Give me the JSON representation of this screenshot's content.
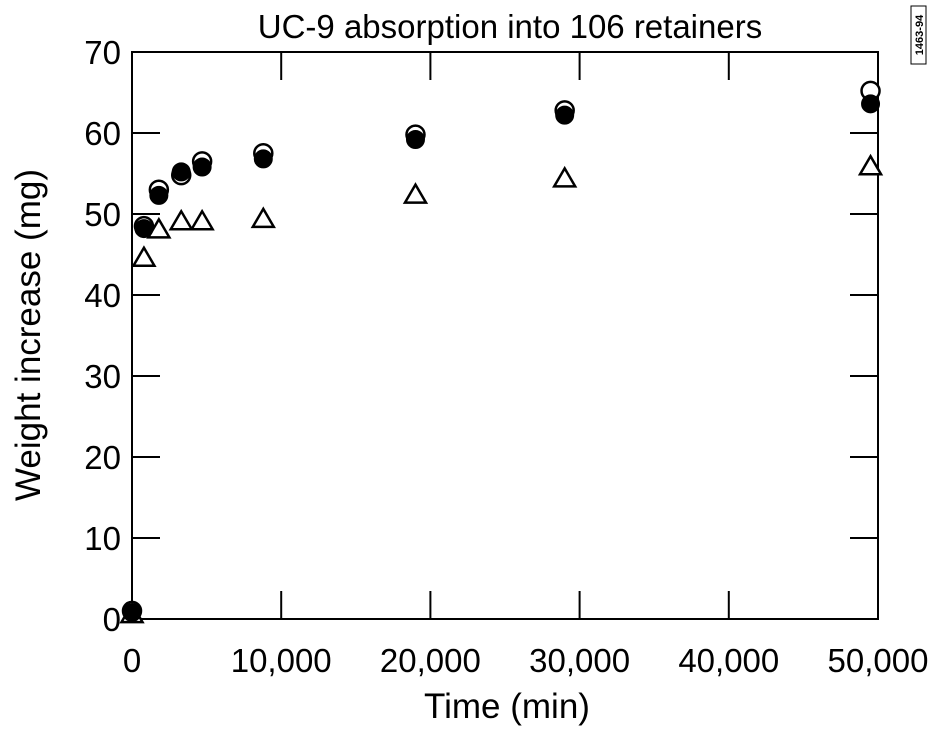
{
  "figure_id": "1463-94",
  "chart_data": {
    "type": "scatter",
    "title": "UC-9 absorption into 106 retainers",
    "xlabel": "Time (min)",
    "ylabel": "Weight increase (mg)",
    "xlim": [
      0,
      50000
    ],
    "ylim": [
      0,
      70
    ],
    "xticks": [
      0,
      10000,
      20000,
      30000,
      40000,
      50000
    ],
    "xtick_labels": [
      "0",
      "10,000",
      "20,000",
      "30,000",
      "40,000",
      "50,000"
    ],
    "yticks": [
      0,
      10,
      20,
      30,
      40,
      50,
      60,
      70
    ],
    "ytick_labels": [
      "0",
      "10",
      "20",
      "30",
      "40",
      "50",
      "60",
      "70"
    ],
    "grid": false,
    "legend": "none",
    "series": [
      {
        "marker": "circle-open",
        "x": [
          0,
          800,
          1800,
          3300,
          4700,
          8800,
          19000,
          29000,
          49500
        ],
        "y": [
          1,
          48.5,
          53,
          54.8,
          56.5,
          57.5,
          59.8,
          62.8,
          65.2
        ]
      },
      {
        "marker": "circle-filled",
        "x": [
          0,
          800,
          1800,
          3300,
          4700,
          8800,
          19000,
          29000,
          49500
        ],
        "y": [
          0.8,
          48.2,
          52.3,
          55.2,
          55.8,
          56.8,
          59.2,
          62.2,
          63.6
        ]
      },
      {
        "marker": "triangle-open",
        "x": [
          0,
          800,
          1800,
          3300,
          4700,
          8800,
          19000,
          29000,
          49500
        ],
        "y": [
          0.5,
          44.5,
          48,
          49,
          49,
          49.3,
          52.3,
          54.3,
          55.8
        ]
      }
    ]
  }
}
